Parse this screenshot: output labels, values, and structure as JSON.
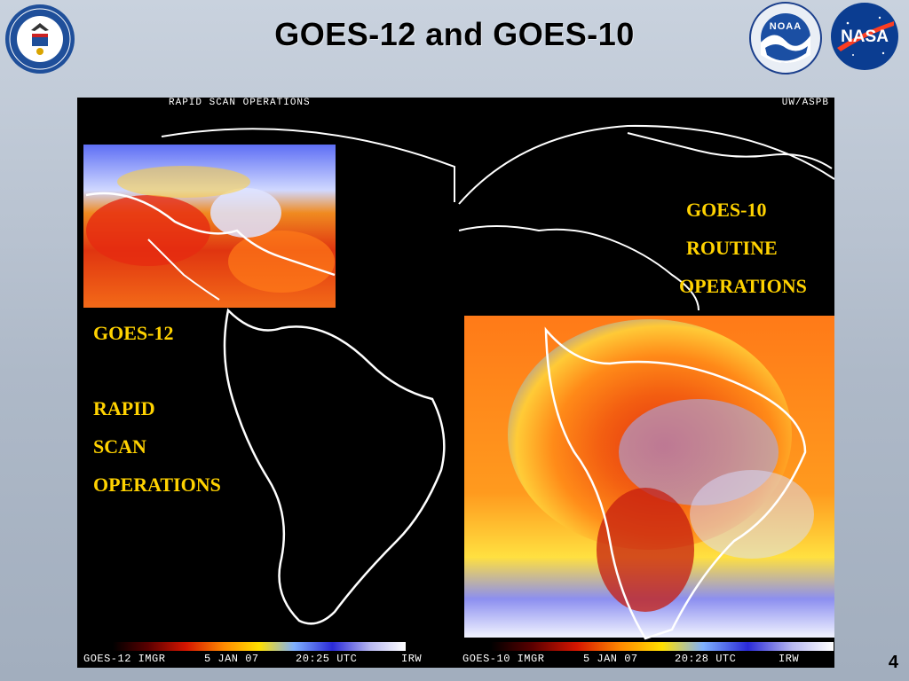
{
  "slide": {
    "title": "GOES-12 and GOES-10",
    "page_number": "4"
  },
  "logos": {
    "noaa_text": "NOAA",
    "nasa_text": "NASA"
  },
  "image": {
    "top_left_label": "RAPID SCAN OPERATIONS",
    "top_right_label": "UW/ASPB",
    "goes12": {
      "name": "GOES-12",
      "mode_lines": [
        "RAPID",
        "SCAN",
        "OPERATIONS"
      ],
      "footer": {
        "instrument": "GOES-12 IMGR",
        "date": "5 JAN 07",
        "time": "20:25 UTC",
        "channel": "IRW"
      }
    },
    "goes10": {
      "name": "GOES-10",
      "mode_lines": [
        "ROUTINE",
        "OPERATIONS"
      ],
      "footer": {
        "instrument": "GOES-10 IMGR",
        "date": "5 JAN 07",
        "time": "20:28 UTC",
        "channel": "IRW"
      }
    }
  },
  "colors": {
    "annotation": "#ffd200",
    "panel_background": "#000000"
  }
}
